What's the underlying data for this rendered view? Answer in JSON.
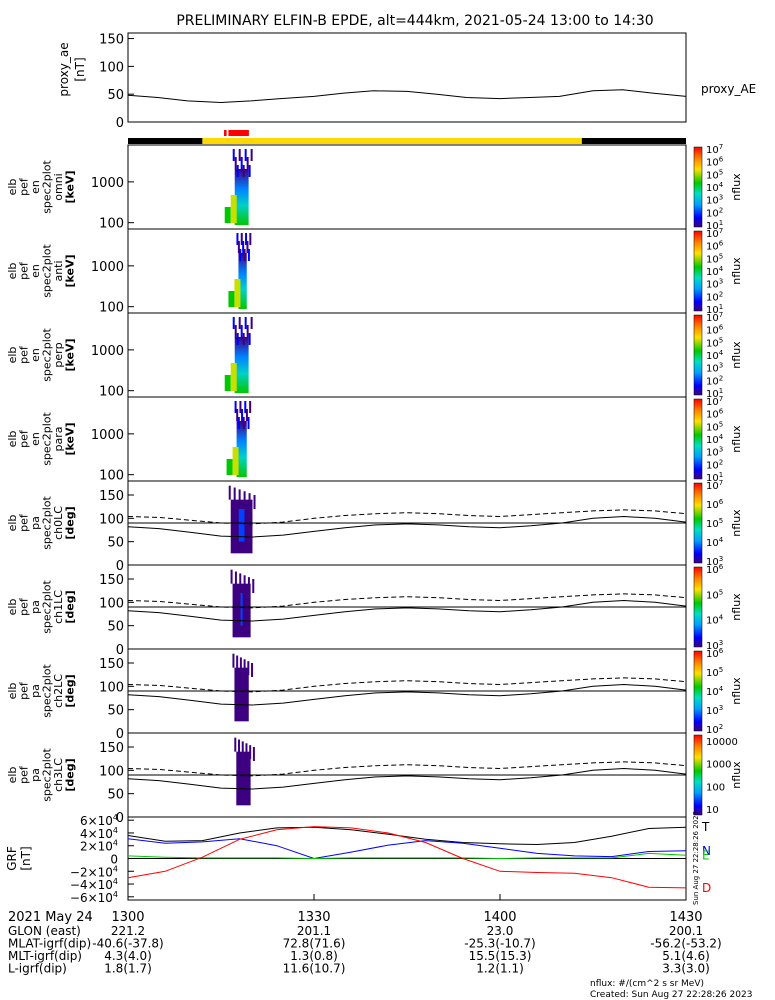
{
  "title": "PRELIMINARY ELFIN-B EPDE, alt=444km, 2021-05-24 13:00 to 14:30",
  "colors": {
    "black": "#000000",
    "red": "#ff0000",
    "yellow": "#ffd800",
    "blue": "#0000ff",
    "green": "#00c800"
  },
  "status_bar": {
    "segments": [
      {
        "t0": 13.0,
        "t1": 13.2,
        "state": "off",
        "color": "#000000"
      },
      {
        "t0": 13.2,
        "t1": 14.22,
        "state": "on",
        "color": "#ffd800"
      },
      {
        "t0": 14.22,
        "t1": 14.5,
        "state": "off",
        "color": "#000000"
      }
    ],
    "markers": [
      {
        "t0": 13.258,
        "t1": 13.265,
        "color": "#ff0000"
      },
      {
        "t0": 13.27,
        "t1": 13.325,
        "color": "#ff0000"
      }
    ]
  },
  "x_axis": {
    "range_hours": [
      13.0,
      14.5
    ],
    "ticks": [
      {
        "t": 13.0,
        "label": "1300"
      },
      {
        "t": 13.5,
        "label": "1330"
      },
      {
        "t": 14.0,
        "label": "1400"
      },
      {
        "t": 14.5,
        "label": "1430"
      }
    ]
  },
  "footer": {
    "date": "2021 May 24",
    "rows": [
      {
        "label": "GLON (east)",
        "values": [
          "221.2",
          "201.1",
          "23.0",
          "200.1"
        ]
      },
      {
        "label": "MLAT-igrf(dip)",
        "values": [
          "-40.6(-37.8)",
          "72.8(71.6)",
          "-25.3(-10.7)",
          "-56.2(-53.2)"
        ]
      },
      {
        "label": "MLT-igrf(dip)",
        "values": [
          "4.3(4.0)",
          "1.3(0.8)",
          "15.5(15.3)",
          "5.1(4.6)"
        ]
      },
      {
        "label": "L-igrf(dip)",
        "values": [
          "1.8(1.7)",
          "11.6(10.7)",
          "1.2(1.1)",
          "3.3(3.0)"
        ]
      }
    ],
    "units": "nflux: #/(cm^2 s sr MeV)",
    "created": "Created: Sun Aug 27 22:28:26 2023",
    "side_stamp": "Sun Aug 27 22:28:26 2023"
  },
  "chart_data": [
    {
      "type": "line",
      "ylabel": "proxy_ae [nT]",
      "ylim": [
        0,
        160
      ],
      "yticks": [
        0,
        50,
        100,
        150
      ],
      "legend": "proxy_AE",
      "series": [
        {
          "name": "proxy_AE",
          "x": [
            13.0,
            13.08,
            13.16,
            13.25,
            13.33,
            13.41,
            13.5,
            13.58,
            13.66,
            13.75,
            13.83,
            13.91,
            14.0,
            14.08,
            14.16,
            14.25,
            14.33,
            14.41,
            14.5
          ],
          "y": [
            48,
            44,
            38,
            35,
            38,
            42,
            46,
            52,
            56,
            55,
            50,
            44,
            42,
            44,
            46,
            56,
            58,
            52,
            46
          ]
        }
      ]
    },
    {
      "type": "heatmap",
      "ylabel": "elb pef en spec2plot omni [keV]",
      "ylim": [
        70,
        8000
      ],
      "yscale": "log",
      "yticks": [
        {
          "v": 100,
          "label": "100"
        },
        {
          "v": 1000,
          "label": "1000"
        }
      ],
      "zlabel": "nflux",
      "zlim_exp": [
        1,
        7
      ],
      "t_range": [
        13.26,
        13.335
      ]
    },
    {
      "type": "heatmap",
      "ylabel": "elb pef en spec2plot anti [keV]",
      "ylim": [
        70,
        8000
      ],
      "yscale": "log",
      "yticks": [
        {
          "v": 100,
          "label": "100"
        },
        {
          "v": 1000,
          "label": "1000"
        }
      ],
      "zlabel": "nflux",
      "zlim_exp": [
        1,
        7
      ],
      "t_range": [
        13.27,
        13.33
      ]
    },
    {
      "type": "heatmap",
      "ylabel": "elb pef en spec2plot perp [keV]",
      "ylim": [
        70,
        8000
      ],
      "yscale": "log",
      "yticks": [
        {
          "v": 100,
          "label": "100"
        },
        {
          "v": 1000,
          "label": "1000"
        }
      ],
      "zlabel": "nflux",
      "zlim_exp": [
        1,
        7
      ],
      "t_range": [
        13.26,
        13.335
      ]
    },
    {
      "type": "heatmap",
      "ylabel": "elb pef en spec2plot para [keV]",
      "ylim": [
        70,
        8000
      ],
      "yscale": "log",
      "yticks": [
        {
          "v": 100,
          "label": "100"
        },
        {
          "v": 1000,
          "label": "1000"
        }
      ],
      "zlabel": "nflux",
      "zlim_exp": [
        1,
        7
      ],
      "t_range": [
        13.265,
        13.33
      ]
    },
    {
      "type": "heatmap",
      "ylabel": "elb pef pa spec2plot ch0LC [deg]",
      "ylim": [
        0,
        180
      ],
      "yticks": [
        {
          "v": 0,
          "label": "0"
        },
        {
          "v": 50,
          "label": "50"
        },
        {
          "v": 100,
          "label": "100"
        },
        {
          "v": 150,
          "label": "150"
        }
      ],
      "zlabel": "nflux",
      "zlim_exp": [
        3,
        7
      ],
      "t_range": [
        13.26,
        13.34
      ],
      "lines": {
        "solid": [
          82,
          78,
          70,
          62,
          60,
          64,
          72,
          80,
          86,
          88,
          86,
          82,
          80,
          84,
          90,
          100,
          104,
          100,
          92
        ],
        "dashed": [
          104,
          102,
          96,
          90,
          88,
          92,
          100,
          106,
          110,
          112,
          110,
          106,
          104,
          108,
          112,
          116,
          118,
          116,
          110
        ]
      }
    },
    {
      "type": "heatmap",
      "ylabel": "elb pef pa spec2plot ch1LC [deg]",
      "ylim": [
        0,
        180
      ],
      "yticks": [
        {
          "v": 0,
          "label": "0"
        },
        {
          "v": 50,
          "label": "50"
        },
        {
          "v": 100,
          "label": "100"
        },
        {
          "v": 150,
          "label": "150"
        }
      ],
      "zlabel": "nflux",
      "zlim_exp": [
        3,
        6
      ],
      "t_range": [
        13.265,
        13.335
      ],
      "lines": {
        "solid": [
          82,
          78,
          70,
          62,
          60,
          64,
          72,
          80,
          86,
          88,
          86,
          82,
          80,
          84,
          90,
          100,
          104,
          100,
          92
        ],
        "dashed": [
          104,
          102,
          96,
          90,
          88,
          92,
          100,
          106,
          110,
          112,
          110,
          106,
          104,
          108,
          112,
          116,
          118,
          116,
          110
        ]
      }
    },
    {
      "type": "heatmap",
      "ylabel": "elb pef pa spec2plot ch2LC [deg]",
      "ylim": [
        0,
        180
      ],
      "yticks": [
        {
          "v": 0,
          "label": "0"
        },
        {
          "v": 50,
          "label": "50"
        },
        {
          "v": 100,
          "label": "100"
        },
        {
          "v": 150,
          "label": "150"
        }
      ],
      "zlabel": "nflux",
      "zlim_exp": [
        2,
        6
      ],
      "t_range": [
        13.27,
        13.33
      ],
      "lines": {
        "solid": [
          82,
          78,
          70,
          62,
          60,
          64,
          72,
          80,
          86,
          88,
          86,
          82,
          80,
          84,
          90,
          100,
          104,
          100,
          92
        ],
        "dashed": [
          104,
          102,
          96,
          90,
          88,
          92,
          100,
          106,
          110,
          112,
          110,
          106,
          104,
          108,
          112,
          116,
          118,
          116,
          110
        ]
      }
    },
    {
      "type": "heatmap",
      "ylabel": "elb pef pa spec2plot ch3LC [deg]",
      "ylim": [
        0,
        180
      ],
      "yticks": [
        {
          "v": 0,
          "label": "0"
        },
        {
          "v": 50,
          "label": "50"
        },
        {
          "v": 100,
          "label": "100"
        },
        {
          "v": 150,
          "label": "150"
        }
      ],
      "zlabel": "nflux",
      "zlim_lin": [
        "10",
        "100",
        "1000",
        "10000"
      ],
      "t_range": [
        13.275,
        13.335
      ],
      "lines": {
        "solid": [
          82,
          78,
          70,
          62,
          60,
          64,
          72,
          80,
          86,
          88,
          86,
          82,
          80,
          84,
          90,
          100,
          104,
          100,
          92
        ],
        "dashed": [
          104,
          102,
          96,
          90,
          88,
          92,
          100,
          106,
          110,
          112,
          110,
          106,
          104,
          108,
          112,
          116,
          118,
          116,
          110
        ]
      }
    },
    {
      "type": "line",
      "ylabel": "GRF [nT]",
      "ylim": [
        -65000,
        65000
      ],
      "yticks": [
        {
          "v": 60000,
          "base": "6×10",
          "exp": "4"
        },
        {
          "v": 40000,
          "base": "4×10",
          "exp": "4"
        },
        {
          "v": 20000,
          "base": "2×10",
          "exp": "4"
        },
        {
          "v": 0,
          "base": "0",
          "exp": ""
        },
        {
          "v": -20000,
          "base": "−2×10",
          "exp": "4"
        },
        {
          "v": -40000,
          "base": "−4×10",
          "exp": "4"
        },
        {
          "v": -60000,
          "base": "−6×10",
          "exp": "4"
        }
      ],
      "series": [
        {
          "name": "T",
          "color": "#000000",
          "x": [
            13.0,
            13.1,
            13.2,
            13.3,
            13.4,
            13.5,
            13.6,
            13.7,
            13.8,
            13.9,
            14.0,
            14.1,
            14.2,
            14.3,
            14.4,
            14.5
          ],
          "y": [
            36000,
            27000,
            28000,
            40000,
            48000,
            49000,
            45000,
            38000,
            30000,
            25000,
            23000,
            22000,
            25000,
            35000,
            47000,
            49000
          ]
        },
        {
          "name": "N",
          "color": "#0000ff",
          "x": [
            13.0,
            13.1,
            13.2,
            13.3,
            13.4,
            13.5,
            13.6,
            13.7,
            13.8,
            13.9,
            14.0,
            14.1,
            14.2,
            14.3,
            14.4,
            14.5
          ],
          "y": [
            31000,
            24000,
            26000,
            31000,
            20000,
            0,
            10000,
            21000,
            28000,
            24000,
            16000,
            8000,
            4000,
            3000,
            11000,
            12000
          ]
        },
        {
          "name": "E",
          "color": "#00c800",
          "x": [
            13.0,
            13.1,
            13.2,
            13.3,
            13.4,
            13.5,
            13.6,
            13.7,
            13.8,
            13.9,
            14.0,
            14.1,
            14.2,
            14.3,
            14.4,
            14.5
          ],
          "y": [
            4000,
            2000,
            1000,
            1000,
            1000,
            0,
            1000,
            1000,
            1000,
            1000,
            0,
            1000,
            1000,
            1000,
            8000,
            5000
          ]
        },
        {
          "name": "D",
          "color": "#ff0000",
          "x": [
            13.0,
            13.1,
            13.2,
            13.3,
            13.4,
            13.5,
            13.6,
            13.7,
            13.8,
            13.9,
            14.0,
            14.1,
            14.2,
            14.3,
            14.4,
            14.5
          ],
          "y": [
            -30000,
            -20000,
            2000,
            30000,
            45000,
            50000,
            48000,
            40000,
            25000,
            0,
            -20000,
            -22000,
            -23000,
            -30000,
            -45000,
            -46000
          ]
        }
      ]
    }
  ]
}
